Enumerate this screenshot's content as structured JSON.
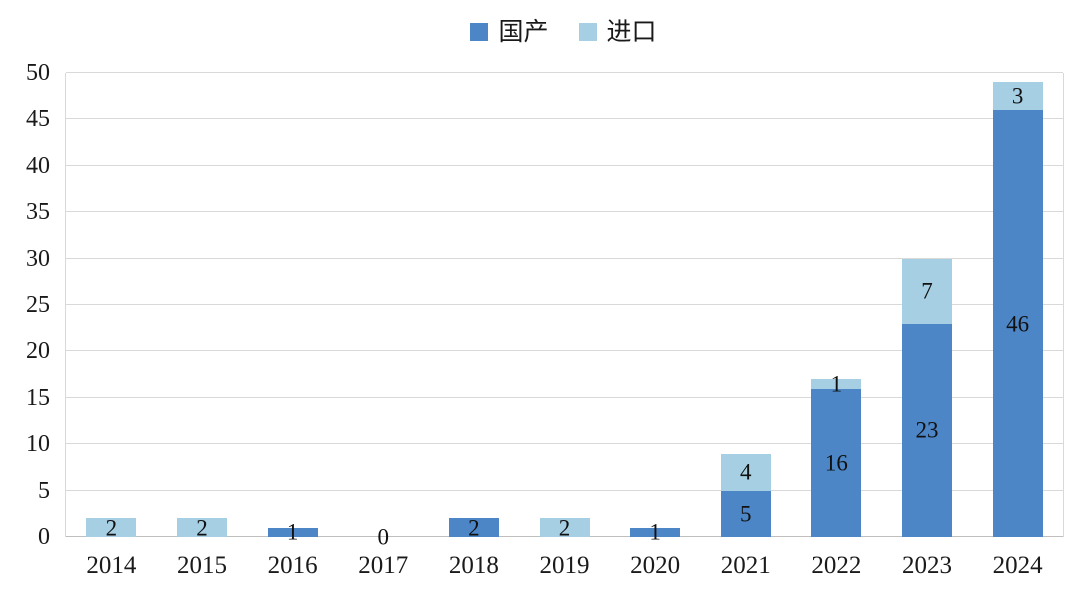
{
  "chart_data": {
    "type": "bar",
    "stacked": true,
    "title": "",
    "xlabel": "",
    "ylabel": "",
    "categories": [
      "2014",
      "2015",
      "2016",
      "2017",
      "2018",
      "2019",
      "2020",
      "2021",
      "2022",
      "2023",
      "2024"
    ],
    "series": [
      {
        "name": "国产",
        "color": "#4C86C6",
        "values": [
          0,
          0,
          1,
          0,
          2,
          0,
          1,
          5,
          16,
          23,
          46
        ]
      },
      {
        "name": "进口",
        "color": "#A6CFE3",
        "values": [
          2,
          2,
          0,
          0,
          0,
          2,
          0,
          4,
          1,
          7,
          3
        ]
      }
    ],
    "totals": [
      2,
      2,
      1,
      0,
      2,
      2,
      1,
      9,
      17,
      30,
      49
    ],
    "y_axis": {
      "min": 0,
      "max": 50,
      "step": 5,
      "ticks": [
        0,
        5,
        10,
        15,
        20,
        25,
        30,
        35,
        40,
        45,
        50
      ]
    },
    "grid": true,
    "legend_position": "top-center",
    "data_labels": "center",
    "zero_label": "0"
  },
  "colors": {
    "domestic": "#4C86C6",
    "import": "#A6CFE3",
    "gridline": "#D9D9D9",
    "axis_line": "#BFBFBF",
    "text": "#1a1a1a",
    "background": "#ffffff"
  }
}
